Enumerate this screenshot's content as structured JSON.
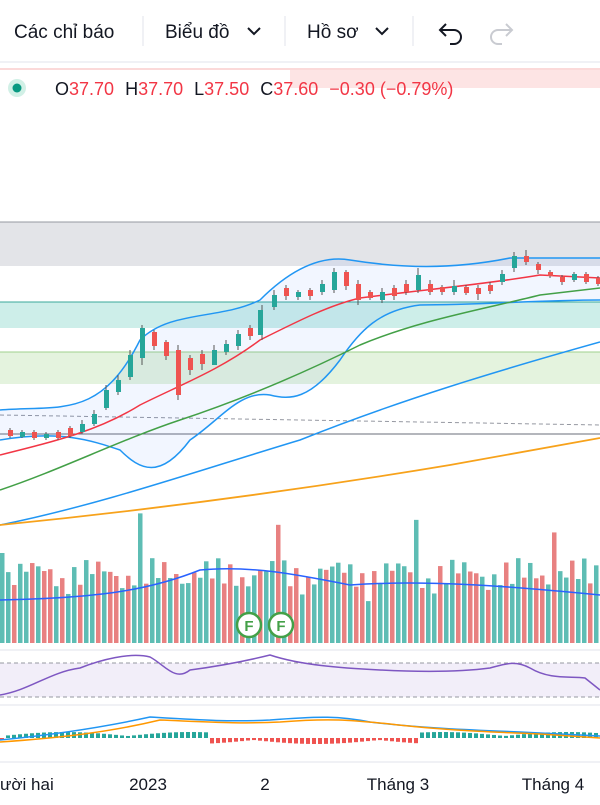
{
  "toolbar": {
    "indicators": "Các chỉ báo",
    "chart": "Biểu đồ",
    "profile": "Hồ sơ"
  },
  "legend": {
    "o_label": "O",
    "open": "37.70",
    "h_label": "H",
    "high": "37.70",
    "l_label": "L",
    "low": "37.50",
    "c_label": "C",
    "close": "37.60",
    "change": "−0.30 (−0.79%)"
  },
  "markers": [
    "F",
    "F"
  ],
  "x_axis": [
    "ười hai",
    "2023",
    "2",
    "Tháng 3",
    "Tháng 4"
  ]
}
